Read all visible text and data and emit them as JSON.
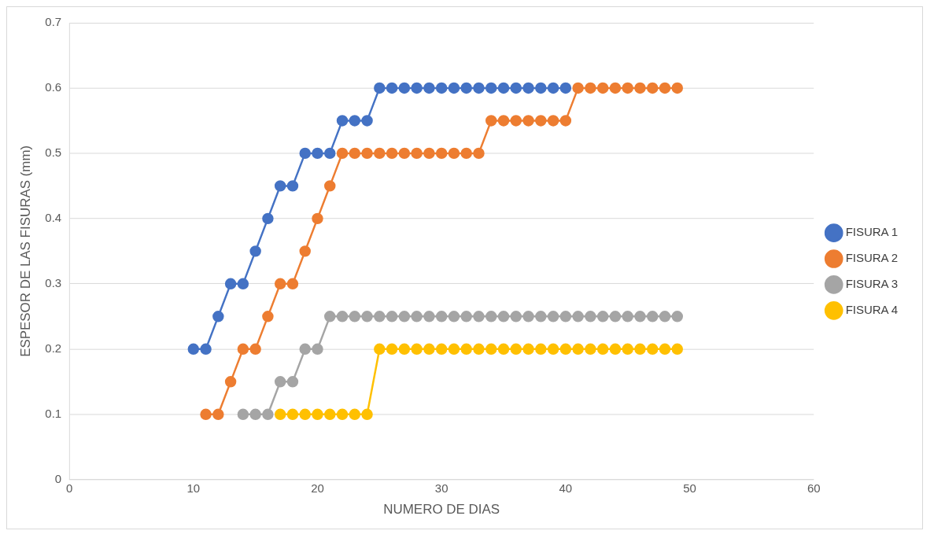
{
  "chart_data": {
    "type": "line",
    "xlabel": "NUMERO DE DIAS",
    "ylabel": "ESPESOR DE LAS FISURAS (mm)",
    "xlim": [
      0,
      60
    ],
    "xticks": [
      0,
      10,
      20,
      30,
      40,
      50,
      60
    ],
    "ylim": [
      0,
      0.7
    ],
    "yticks": [
      0,
      0.1,
      0.2,
      0.3,
      0.4,
      0.5,
      0.6,
      0.7
    ],
    "grid": "y",
    "legend": "right",
    "marker": "circle",
    "line_style": "solid",
    "series": [
      {
        "name": "FISURA 1",
        "color": "#4472c4",
        "x": [
          10,
          11,
          12,
          13,
          14,
          15,
          16,
          17,
          18,
          19,
          20,
          21,
          22,
          23,
          24,
          25,
          26,
          27,
          28,
          29,
          30,
          31,
          32,
          33,
          34,
          35,
          36,
          37,
          38,
          39,
          40
        ],
        "values": [
          0.2,
          0.2,
          0.25,
          0.3,
          0.3,
          0.35,
          0.4,
          0.45,
          0.45,
          0.5,
          0.5,
          0.5,
          0.55,
          0.55,
          0.55,
          0.6,
          0.6,
          0.6,
          0.6,
          0.6,
          0.6,
          0.6,
          0.6,
          0.6,
          0.6,
          0.6,
          0.6,
          0.6,
          0.6,
          0.6,
          0.6
        ]
      },
      {
        "name": "FISURA 2",
        "color": "#ed7d31",
        "x": [
          11,
          12,
          13,
          14,
          15,
          16,
          17,
          18,
          19,
          20,
          21,
          22,
          23,
          24,
          25,
          26,
          27,
          28,
          29,
          30,
          31,
          32,
          33,
          34,
          35,
          36,
          37,
          38,
          39,
          40,
          41,
          42,
          43,
          44,
          45,
          46,
          47,
          48,
          49
        ],
        "values": [
          0.1,
          0.1,
          0.15,
          0.2,
          0.2,
          0.25,
          0.3,
          0.3,
          0.35,
          0.4,
          0.45,
          0.5,
          0.5,
          0.5,
          0.5,
          0.5,
          0.5,
          0.5,
          0.5,
          0.5,
          0.5,
          0.5,
          0.5,
          0.55,
          0.55,
          0.55,
          0.55,
          0.55,
          0.55,
          0.55,
          0.6,
          0.6,
          0.6,
          0.6,
          0.6,
          0.6,
          0.6,
          0.6,
          0.6
        ]
      },
      {
        "name": "FISURA 3",
        "color": "#a5a5a5",
        "x": [
          14,
          15,
          16,
          17,
          18,
          19,
          20,
          21,
          22,
          23,
          24,
          25,
          26,
          27,
          28,
          29,
          30,
          31,
          32,
          33,
          34,
          35,
          36,
          37,
          38,
          39,
          40,
          41,
          42,
          43,
          44,
          45,
          46,
          47,
          48,
          49
        ],
        "values": [
          0.1,
          0.1,
          0.1,
          0.15,
          0.15,
          0.2,
          0.2,
          0.25,
          0.25,
          0.25,
          0.25,
          0.25,
          0.25,
          0.25,
          0.25,
          0.25,
          0.25,
          0.25,
          0.25,
          0.25,
          0.25,
          0.25,
          0.25,
          0.25,
          0.25,
          0.25,
          0.25,
          0.25,
          0.25,
          0.25,
          0.25,
          0.25,
          0.25,
          0.25,
          0.25,
          0.25
        ]
      },
      {
        "name": "FISURA 4",
        "color": "#ffc000",
        "x": [
          17,
          18,
          19,
          20,
          21,
          22,
          23,
          24,
          25,
          26,
          27,
          28,
          29,
          30,
          31,
          32,
          33,
          34,
          35,
          36,
          37,
          38,
          39,
          40,
          41,
          42,
          43,
          44,
          45,
          46,
          47,
          48,
          49
        ],
        "values": [
          0.1,
          0.1,
          0.1,
          0.1,
          0.1,
          0.1,
          0.1,
          0.1,
          0.2,
          0.2,
          0.2,
          0.2,
          0.2,
          0.2,
          0.2,
          0.2,
          0.2,
          0.2,
          0.2,
          0.2,
          0.2,
          0.2,
          0.2,
          0.2,
          0.2,
          0.2,
          0.2,
          0.2,
          0.2,
          0.2,
          0.2,
          0.2,
          0.2
        ]
      }
    ]
  }
}
